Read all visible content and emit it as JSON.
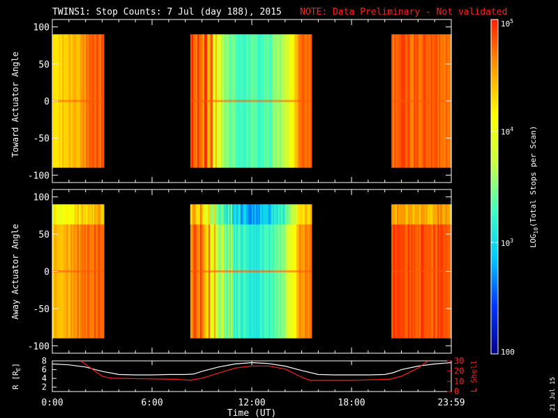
{
  "title": {
    "main": "TWINS1: Stop Counts:  7 Jul (day 188), 2015",
    "note": "NOTE: Data Preliminary - Not validated",
    "note_color": "#ff2020"
  },
  "stamp": "21 Jul 15",
  "colorbar": {
    "label": "LOG",
    "label_sub": "10",
    "label_rest": "(Total Stops per Scan)",
    "ticks": [
      {
        "value": 100,
        "text": "100"
      },
      {
        "value": 1000,
        "text": "10",
        "sup": "3"
      },
      {
        "value": 10000,
        "text": "10",
        "sup": "4"
      },
      {
        "value": 100000,
        "text": "10",
        "sup": "5"
      }
    ],
    "range": [
      100,
      100000
    ],
    "colormap": [
      "#00008a",
      "#0033ff",
      "#00c8ff",
      "#40ffc0",
      "#c8ff40",
      "#ffff00",
      "#ff9900",
      "#ff2000"
    ]
  },
  "chart_data": [
    {
      "type": "heatmap",
      "ylabel": "Toward Actuator Angle",
      "ylim": [
        -110,
        110
      ],
      "yticks": [
        100,
        50,
        0,
        -50,
        -100
      ],
      "x_unit": "hours UT",
      "xlim": [
        0,
        24
      ],
      "data_angle_range": [
        -90,
        90
      ],
      "segments": [
        {
          "start": 0.0,
          "end": 3.1,
          "log_counts_start": 4.2,
          "log_counts_end": 4.85
        },
        {
          "start": 8.3,
          "end": 15.6,
          "log_counts_edge": 4.7,
          "log_counts_center": 3.3
        },
        {
          "start": 20.4,
          "end": 24.0,
          "log_counts_start": 4.8,
          "log_counts_end": 4.75
        }
      ]
    },
    {
      "type": "heatmap",
      "ylabel": "Away Actuator Angle",
      "ylim": [
        -110,
        110
      ],
      "yticks": [
        100,
        50,
        0,
        -50,
        -100
      ],
      "x_unit": "hours UT",
      "xlim": [
        0,
        24
      ],
      "data_angle_range": [
        -90,
        90
      ],
      "segments": [
        {
          "start": 0.0,
          "end": 3.1,
          "log_counts_start": 4.4,
          "log_counts_end": 4.85
        },
        {
          "start": 8.3,
          "end": 15.6,
          "log_counts_edge": 4.6,
          "log_counts_center": 3.2
        },
        {
          "start": 20.4,
          "end": 24.0,
          "log_counts_start": 4.85,
          "log_counts_end": 4.8
        }
      ]
    },
    {
      "type": "line",
      "xlabel": "Time (UT)",
      "xticks": [
        "0:00",
        "6:00",
        "12:00",
        "18:00",
        "23:59"
      ],
      "xtick_hours": [
        0,
        6,
        12,
        18,
        24
      ],
      "ylabel_left": "R [R",
      "ylabel_left_sub": "E",
      "ylabel_left_end": "]",
      "ylabel_right": "L Shell",
      "left_ylim": [
        1,
        8
      ],
      "left_yticks": [
        2,
        4,
        6,
        8
      ],
      "right_ylim": [
        0,
        30
      ],
      "right_yticks": [
        0,
        10,
        20,
        30
      ],
      "series": [
        {
          "color": "#ffffff",
          "x": [
            0,
            1,
            2,
            3,
            4,
            5,
            6,
            7,
            8,
            8.5,
            9,
            10,
            11,
            12,
            13,
            14,
            15,
            16,
            17,
            18,
            19,
            20,
            20.5,
            21,
            22,
            23,
            24
          ],
          "y": [
            7.3,
            7.1,
            6.6,
            5.6,
            4.9,
            4.8,
            4.8,
            4.9,
            4.9,
            5.0,
            5.6,
            6.6,
            7.3,
            7.6,
            7.4,
            6.8,
            5.8,
            4.9,
            4.8,
            4.8,
            4.8,
            4.9,
            5.3,
            6.0,
            6.8,
            7.3,
            7.6
          ]
        },
        {
          "color": "#ff2020",
          "x": [
            1.7,
            3.0,
            3.5,
            5.5,
            7.5,
            8.3,
            9.0,
            10.0,
            11.0,
            12.0,
            13.0,
            14.0,
            15.0,
            15.5,
            18.0,
            20.3,
            21.0,
            22.0,
            22.6
          ],
          "y": [
            30,
            15,
            13,
            12.5,
            12,
            11,
            13,
            18,
            23,
            25,
            25,
            22,
            14,
            11,
            11,
            12,
            15,
            23,
            30
          ]
        }
      ]
    }
  ]
}
